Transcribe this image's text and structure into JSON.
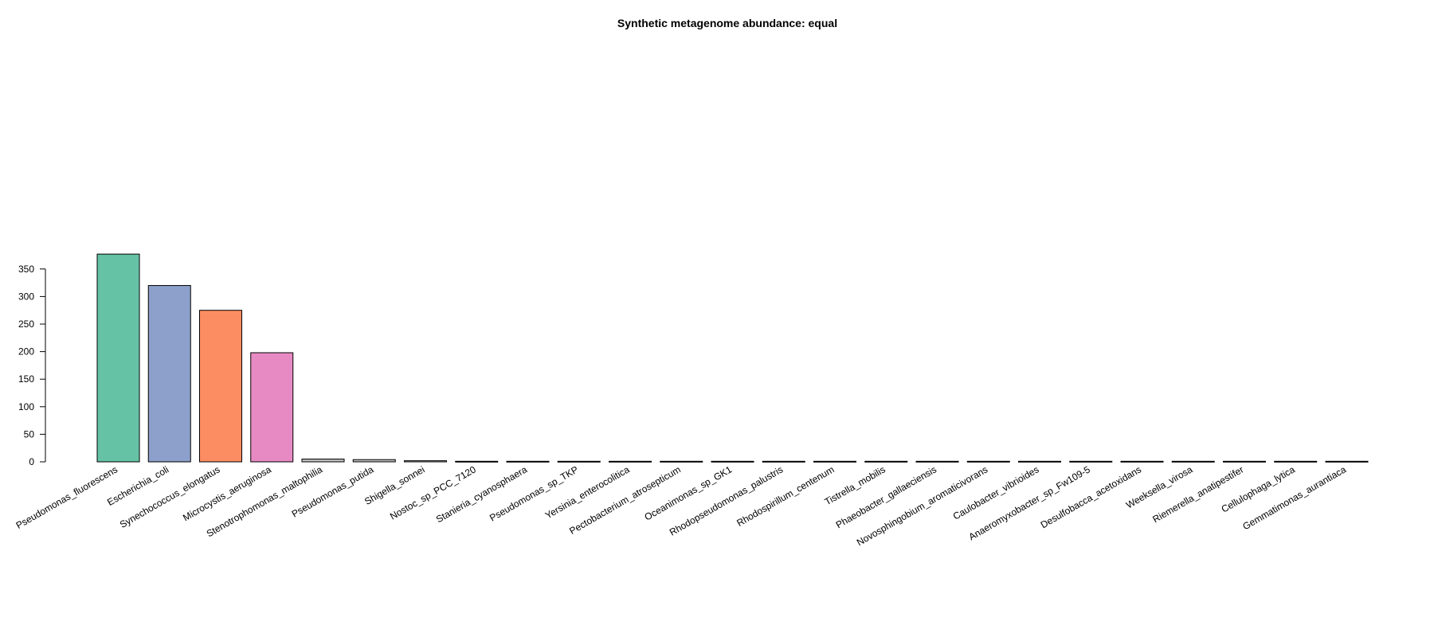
{
  "chart_data": {
    "type": "bar",
    "title": "Synthetic metagenome abundance: equal",
    "xlabel": "",
    "ylabel": "",
    "ylim": [
      0,
      380
    ],
    "yticks": [
      0,
      50,
      100,
      150,
      200,
      250,
      300,
      350
    ],
    "categories": [
      "Pseudomonas_fluorescens",
      "Escherichia_coli",
      "Synechococcus_elongatus",
      "Microcystis_aeruginosa",
      "Stenotrophomonas_maltophilia",
      "Pseudomonas_putida",
      "Shigella_sonnei",
      "Nostoc_sp_PCC_7120",
      "Stanieria_cyanosphaera",
      "Pseudomonas_sp_TKP",
      "Yersinia_enterocolitica",
      "Pectobacterium_atrosepticum",
      "Oceanimonas_sp_GK1",
      "Rhodopseudomonas_palustris",
      "Rhodospirillum_centenum",
      "Tistrella_mobilis",
      "Phaeobacter_gallaeciensis",
      "Novosphingobium_aromaticivorans",
      "Caulobacter_vibrioides",
      "Anaeromyxobacter_sp_Fw109-5",
      "Desulfobacca_acetoxidans",
      "Weeksella_virosa",
      "Riemerella_anatipestifer",
      "Cellulophaga_lytica",
      "Gemmatimonas_aurantiaca"
    ],
    "values": [
      377,
      320,
      275,
      198,
      5,
      4,
      2,
      1,
      1,
      1,
      1,
      1,
      1,
      1,
      1,
      1,
      1,
      1,
      1,
      1,
      1,
      1,
      1,
      1,
      1
    ],
    "colors": [
      "#66c2a5",
      "#8da0cb",
      "#fc8d62",
      "#e78ac3",
      "#bebebe",
      "#bebebe",
      "#bebebe",
      "#bebebe",
      "#bebebe",
      "#bebebe",
      "#bebebe",
      "#bebebe",
      "#bebebe",
      "#bebebe",
      "#bebebe",
      "#bebebe",
      "#bebebe",
      "#bebebe",
      "#bebebe",
      "#bebebe",
      "#bebebe",
      "#bebebe",
      "#bebebe",
      "#bebebe",
      "#bebebe"
    ],
    "grid": false,
    "legend": "none"
  }
}
